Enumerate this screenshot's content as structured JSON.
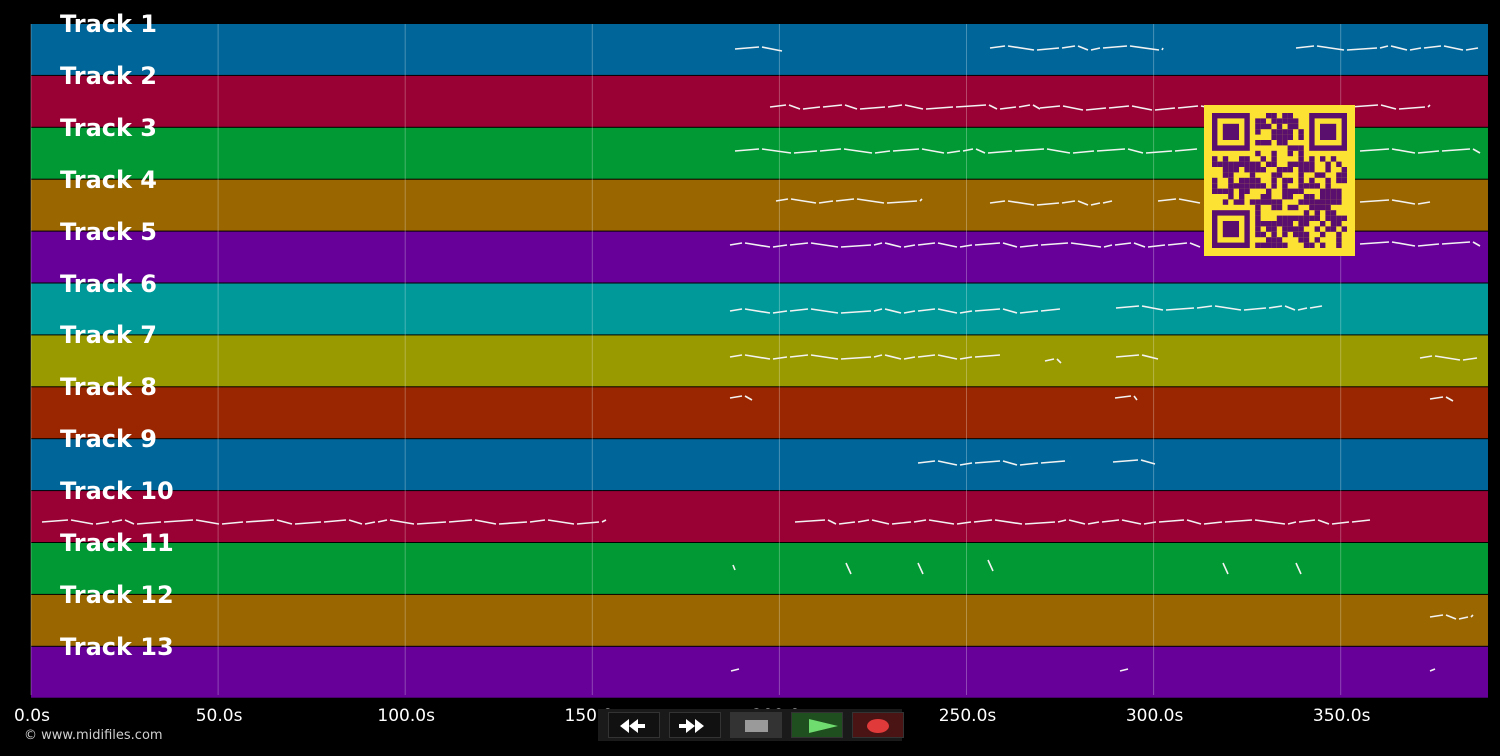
{
  "tracks": [
    {
      "label": "Track 1",
      "color": "#006699"
    },
    {
      "label": "Track 2",
      "color": "#990033"
    },
    {
      "label": "Track 3",
      "color": "#009933"
    },
    {
      "label": "Track 4",
      "color": "#996600"
    },
    {
      "label": "Track 5",
      "color": "#660099"
    },
    {
      "label": "Track 6",
      "color": "#009999"
    },
    {
      "label": "Track 7",
      "color": "#999900"
    },
    {
      "label": "Track 8",
      "color": "#992600"
    },
    {
      "label": "Track 9",
      "color": "#006699"
    },
    {
      "label": "Track 10",
      "color": "#990033"
    },
    {
      "label": "Track 11",
      "color": "#009933"
    },
    {
      "label": "Track 12",
      "color": "#996600"
    },
    {
      "label": "Track 13",
      "color": "#660099"
    }
  ],
  "timeline": {
    "ticks": [
      "0.0s",
      "50.0s",
      "100.0s",
      "150.0s",
      "200.0s",
      "250.0s",
      "300.0s",
      "350.0s"
    ]
  },
  "copyright": "© www.midifiles.com",
  "transport": {
    "rewind": {
      "icon": "rewind-icon",
      "color": "#111111"
    },
    "fast_forward": {
      "icon": "fast-forward-icon",
      "color": "#111111"
    },
    "stop": {
      "icon": "stop-icon",
      "color": "#333333"
    },
    "play": {
      "icon": "play-icon",
      "color": "#1f4f1f"
    },
    "record": {
      "icon": "record-icon",
      "color": "#4a1414"
    }
  },
  "qr_code": {
    "foreground": "#5a0f6e",
    "background": "#fbe233"
  }
}
